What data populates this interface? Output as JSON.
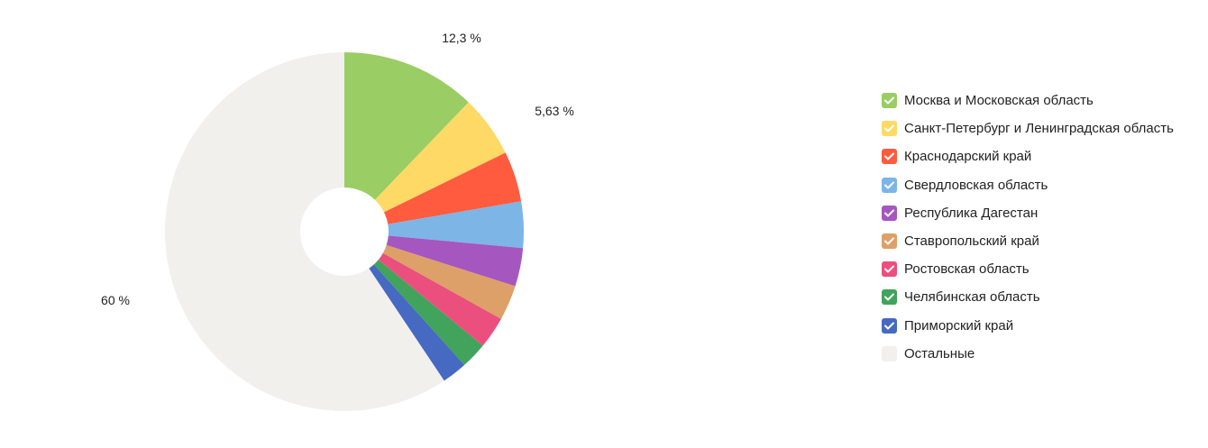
{
  "chart_data": {
    "type": "pie",
    "variant": "donut",
    "title": "",
    "slices": [
      {
        "label": "Москва и Московская область",
        "value": 12.3,
        "display": "12,3 %",
        "color": "#9acd63",
        "checked": true,
        "show_label": true
      },
      {
        "label": "Санкт-Петербург и Ленинградская область",
        "value": 5.63,
        "display": "5,63 %",
        "color": "#ffd966",
        "checked": true,
        "show_label": true
      },
      {
        "label": "Краснодарский край",
        "value": 4.6,
        "display": "",
        "color": "#ff5b3e",
        "checked": true,
        "show_label": false
      },
      {
        "label": "Свердловская область",
        "value": 4.2,
        "display": "",
        "color": "#7cb5e6",
        "checked": true,
        "show_label": false
      },
      {
        "label": "Республика Дагестан",
        "value": 3.5,
        "display": "",
        "color": "#a557bf",
        "checked": true,
        "show_label": false
      },
      {
        "label": "Ставропольский край",
        "value": 3.2,
        "display": "",
        "color": "#dda068",
        "checked": true,
        "show_label": false
      },
      {
        "label": "Ростовская область",
        "value": 2.9,
        "display": "",
        "color": "#eb4f7d",
        "checked": true,
        "show_label": false
      },
      {
        "label": "Челябинская область",
        "value": 2.4,
        "display": "",
        "color": "#42a35c",
        "checked": true,
        "show_label": false
      },
      {
        "label": "Приморский край",
        "value": 2.3,
        "display": "",
        "color": "#4669c2",
        "checked": true,
        "show_label": false
      },
      {
        "label": "Остальные",
        "value": 60,
        "display": "60 %",
        "color": "#f1f0ed",
        "checked": false,
        "show_label": true
      }
    ],
    "legend": {
      "position": "right"
    }
  }
}
